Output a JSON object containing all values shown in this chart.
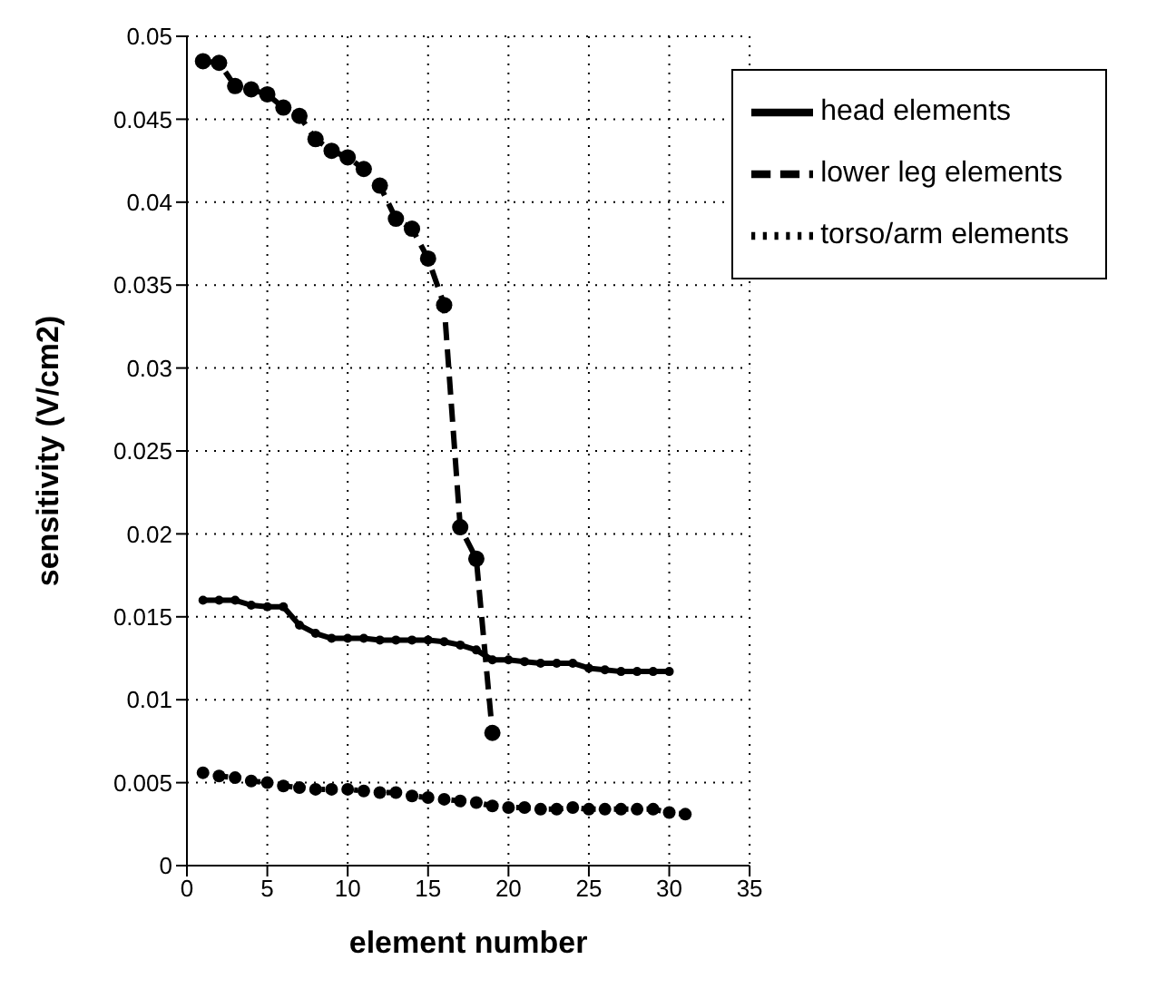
{
  "chart_data": {
    "type": "line",
    "xlabel": "element number",
    "ylabel": "sensitivity (V/cm2)",
    "xlim": [
      0,
      35
    ],
    "xticks": [
      0,
      5,
      10,
      15,
      20,
      25,
      30,
      35
    ],
    "ylim": [
      0,
      0.05
    ],
    "yticks": [
      0,
      0.005,
      0.01,
      0.015,
      0.02,
      0.025,
      0.03,
      0.035,
      0.04,
      0.045,
      0.05
    ],
    "grid": true,
    "legend": "top right",
    "marker": "circle",
    "series": [
      {
        "name": "lower leg elements",
        "color": "#000000",
        "line_style": "dashed",
        "x": [
          1,
          2,
          3,
          4,
          5,
          6,
          7,
          8,
          9,
          10,
          11,
          12,
          13,
          14,
          15,
          16,
          17,
          18,
          19
        ],
        "values": [
          0.0485,
          0.0484,
          0.047,
          0.0468,
          0.0465,
          0.0457,
          0.0452,
          0.0438,
          0.0431,
          0.0427,
          0.042,
          0.041,
          0.039,
          0.0384,
          0.0366,
          0.0338,
          0.0204,
          0.0185,
          0.008
        ]
      },
      {
        "name": "torso/arm elements",
        "color": "#000000",
        "line_style": "dotted",
        "x": [
          1,
          2,
          3,
          4,
          5,
          6,
          7,
          8,
          9,
          10,
          11,
          12,
          13,
          14,
          15,
          16,
          17,
          18,
          19,
          20,
          21,
          22,
          23,
          24,
          25,
          26,
          27,
          28,
          29,
          30,
          31
        ],
        "values": [
          0.0056,
          0.0054,
          0.0053,
          0.0051,
          0.005,
          0.0048,
          0.0047,
          0.0046,
          0.0046,
          0.0046,
          0.0045,
          0.0044,
          0.0044,
          0.0042,
          0.0041,
          0.004,
          0.0039,
          0.0038,
          0.0036,
          0.0035,
          0.0035,
          0.0034,
          0.0034,
          0.0035,
          0.0034,
          0.0034,
          0.0034,
          0.0034,
          0.0034,
          0.0032,
          0.0031
        ]
      },
      {
        "name": "head elements",
        "color": "#000000",
        "line_style": "solid",
        "x": [
          1,
          2,
          3,
          4,
          5,
          6,
          7,
          8,
          9,
          10,
          11,
          12,
          13,
          14,
          15,
          16,
          17,
          18,
          19,
          20,
          21,
          22,
          23,
          24,
          25,
          26,
          27,
          28,
          29,
          30
        ],
        "values": [
          0.016,
          0.016,
          0.016,
          0.0157,
          0.0156,
          0.0156,
          0.0145,
          0.014,
          0.0137,
          0.0137,
          0.0137,
          0.0136,
          0.0136,
          0.0136,
          0.0136,
          0.0135,
          0.0133,
          0.013,
          0.0124,
          0.0124,
          0.0123,
          0.0122,
          0.0122,
          0.0122,
          0.0119,
          0.0118,
          0.0117,
          0.0117,
          0.0117,
          0.0117
        ]
      }
    ]
  }
}
